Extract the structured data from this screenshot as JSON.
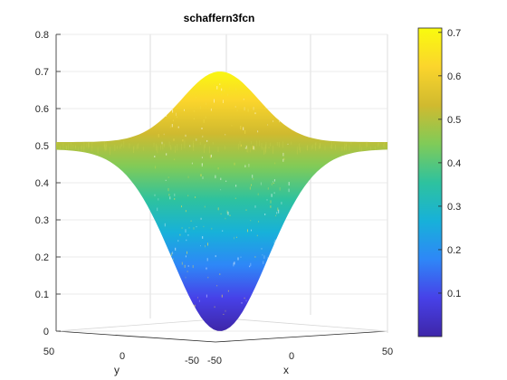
{
  "chart_data": {
    "type": "surface",
    "title": "schaffern3fcn",
    "xlabel": "x",
    "ylabel": "y",
    "zlabel": "",
    "x_range": [
      -50,
      50
    ],
    "y_range": [
      -50,
      50
    ],
    "zlim": [
      0,
      0.8
    ],
    "z_ticks": [
      "0",
      "0.1",
      "0.2",
      "0.3",
      "0.4",
      "0.5",
      "0.6",
      "0.7",
      "0.8"
    ],
    "y_ticks": [
      "50",
      "0",
      "-50"
    ],
    "x_ticks": [
      "-50",
      "0",
      "50"
    ],
    "profile": {
      "description_points": [
        {
          "y_or_x": 50,
          "z": 0.5
        },
        {
          "y_or_x": 0,
          "z_max": 0.7,
          "z_min": 0.0
        }
      ],
      "upper_peak": 0.7,
      "lower_min": 0.0,
      "edge_value": 0.5
    },
    "colorbar": {
      "min": 0.0,
      "max": 0.71,
      "ticks": [
        "0.1",
        "0.2",
        "0.3",
        "0.4",
        "0.5",
        "0.6",
        "0.7"
      ],
      "colormap": "parula",
      "colors": [
        "#3e26a8",
        "#4741e8",
        "#2e87f7",
        "#17b1d9",
        "#2ec29e",
        "#80cb58",
        "#d0ba2f",
        "#fbd52c",
        "#f9fb0e"
      ]
    },
    "grid": true
  }
}
